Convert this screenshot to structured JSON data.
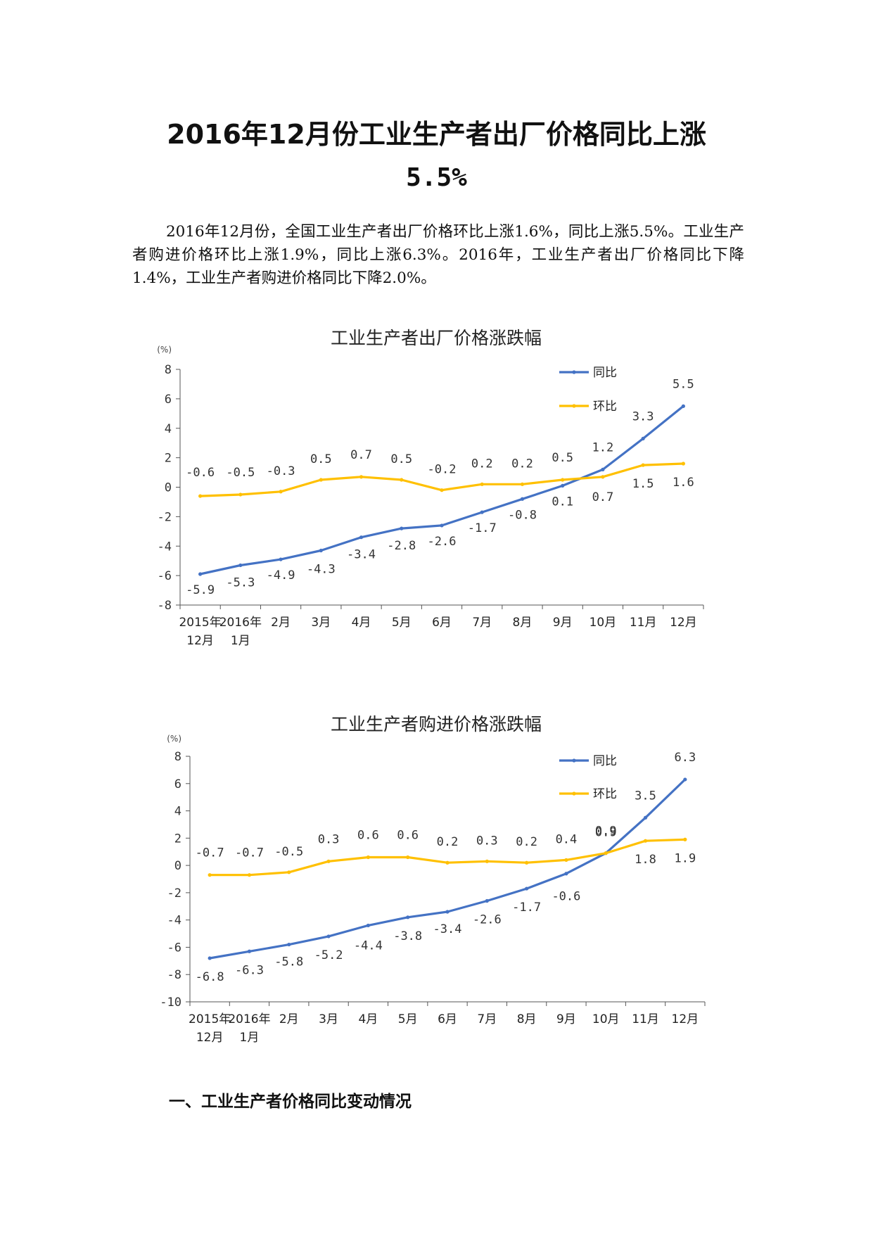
{
  "title": {
    "line1": "2016年12月份工业生产者出厂价格同比上涨",
    "line2": "5.5%"
  },
  "paragraph": "2016年12月份，全国工业生产者出厂价格环比上涨1.6%，同比上涨5.5%。工业生产者购进价格环比上涨1.9%，同比上涨6.3%。2016年，工业生产者出厂价格同比下降1.4%，工业生产者购进价格同比下降2.0%。",
  "section_heading": "一、工业生产者价格同比变动情况",
  "chart_data": [
    {
      "type": "line",
      "title": "工业生产者出厂价格涨跌幅",
      "ylabel": "(%)",
      "ylim": [
        -8,
        8
      ],
      "yticks": [
        8,
        6,
        4,
        2,
        0,
        -2,
        -4,
        -6,
        -8
      ],
      "categories": [
        [
          "2015年",
          "12月"
        ],
        [
          "2016年",
          "1月"
        ],
        [
          "2月"
        ],
        [
          "3月"
        ],
        [
          "4月"
        ],
        [
          "5月"
        ],
        [
          "6月"
        ],
        [
          "7月"
        ],
        [
          "8月"
        ],
        [
          "9月"
        ],
        [
          "10月"
        ],
        [
          "11月"
        ],
        [
          "12月"
        ]
      ],
      "legend_position": "top-right",
      "series": [
        {
          "name": "同比",
          "color": "#4472c4",
          "values": [
            -5.9,
            -5.3,
            -4.9,
            -4.3,
            -3.4,
            -2.8,
            -2.6,
            -1.7,
            -0.8,
            0.1,
            1.2,
            3.3,
            5.5
          ]
        },
        {
          "name": "环比",
          "color": "#ffc000",
          "values": [
            -0.6,
            -0.5,
            -0.3,
            0.5,
            0.7,
            0.5,
            -0.2,
            0.2,
            0.2,
            0.5,
            0.7,
            1.5,
            1.6
          ]
        }
      ]
    },
    {
      "type": "line",
      "title": "工业生产者购进价格涨跌幅",
      "ylabel": "(%)",
      "ylim": [
        -10,
        8
      ],
      "yticks": [
        8,
        6,
        4,
        2,
        0,
        -2,
        -4,
        -6,
        -8,
        -10
      ],
      "categories": [
        [
          "2015年",
          "12月"
        ],
        [
          "2016年",
          "1月"
        ],
        [
          "2月"
        ],
        [
          "3月"
        ],
        [
          "4月"
        ],
        [
          "5月"
        ],
        [
          "6月"
        ],
        [
          "7月"
        ],
        [
          "8月"
        ],
        [
          "9月"
        ],
        [
          "10月"
        ],
        [
          "11月"
        ],
        [
          "12月"
        ]
      ],
      "legend_position": "top-right",
      "series": [
        {
          "name": "同比",
          "color": "#4472c4",
          "values": [
            -6.8,
            -6.3,
            -5.8,
            -5.2,
            -4.4,
            -3.8,
            -3.4,
            -2.6,
            -1.7,
            -0.6,
            0.9,
            3.5,
            6.3
          ]
        },
        {
          "name": "环比",
          "color": "#ffc000",
          "values": [
            -0.7,
            -0.7,
            -0.5,
            0.3,
            0.6,
            0.6,
            0.2,
            0.3,
            0.2,
            0.4,
            0.9,
            1.8,
            1.9
          ]
        }
      ]
    }
  ]
}
